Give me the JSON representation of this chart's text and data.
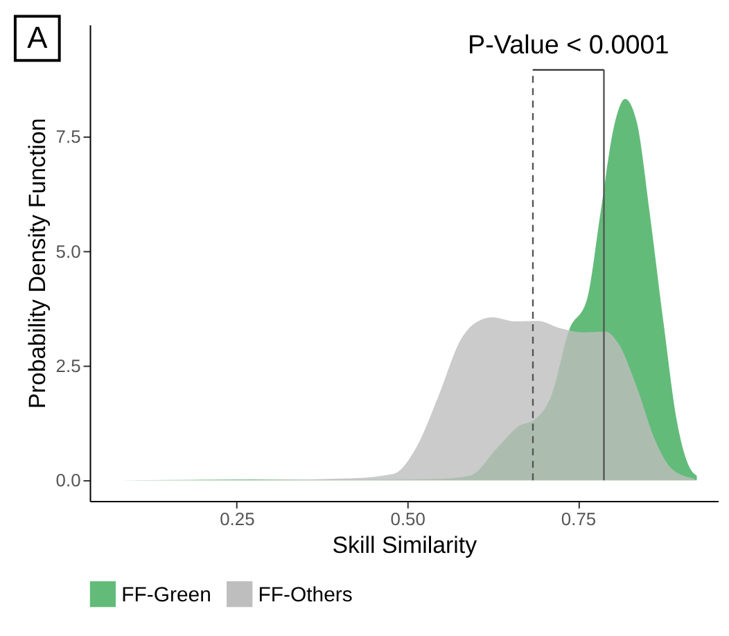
{
  "chart_data": {
    "type": "area",
    "xlabel": "Skill Similarity",
    "ylabel": "Probability Density Function",
    "series": [
      {
        "name": "FF-Green",
        "color": "#63bb7a",
        "x": [
          0.078,
          0.2,
          0.27,
          0.35,
          0.45,
          0.55,
          0.592,
          0.632,
          0.664,
          0.687,
          0.711,
          0.737,
          0.763,
          0.783,
          0.803,
          0.819,
          0.836,
          0.855,
          0.875,
          0.895,
          0.915,
          0.924
        ],
        "values": [
          0,
          0.01,
          0.02,
          0.01,
          0.01,
          0.03,
          0.1,
          0.71,
          1.19,
          1.33,
          1.85,
          3.28,
          3.94,
          5.84,
          7.74,
          8.33,
          7.83,
          5.84,
          3.47,
          1.28,
          0.24,
          0.1
        ]
      },
      {
        "name": "FF-Others",
        "color": "#bebebe",
        "x": [
          0.078,
          0.3,
          0.414,
          0.48,
          0.513,
          0.546,
          0.579,
          0.598,
          0.625,
          0.658,
          0.691,
          0.724,
          0.757,
          0.79,
          0.809,
          0.836,
          0.862,
          0.888,
          0.921
        ],
        "values": [
          0,
          0.01,
          0.04,
          0.14,
          0.71,
          1.85,
          3.09,
          3.42,
          3.56,
          3.47,
          3.48,
          3.32,
          3.23,
          3.25,
          2.99,
          2.04,
          0.91,
          0.24,
          0.03
        ]
      }
    ],
    "xlim": [
      0.035,
      0.955
    ],
    "ylim": [
      -0.45,
      9.95
    ],
    "xticks": [
      {
        "value": 0.25,
        "label": "0.25"
      },
      {
        "value": 0.5,
        "label": "0.50"
      },
      {
        "value": 0.75,
        "label": "0.75"
      }
    ],
    "yticks": [
      {
        "value": 0,
        "label": "0.0"
      },
      {
        "value": 2.5,
        "label": "2.5"
      },
      {
        "value": 5,
        "label": "5.0"
      },
      {
        "value": 7.5,
        "label": "7.5"
      }
    ],
    "ref_lines": [
      {
        "axis": "x",
        "value": 0.684,
        "line_style": "dashed",
        "color": "#555555"
      },
      {
        "axis": "x",
        "value": 0.788,
        "line_style": "solid",
        "color": "#555555"
      }
    ],
    "annotations": [
      "A",
      "P-Value < 0.0001"
    ],
    "grid": false,
    "legend": "bottom"
  }
}
